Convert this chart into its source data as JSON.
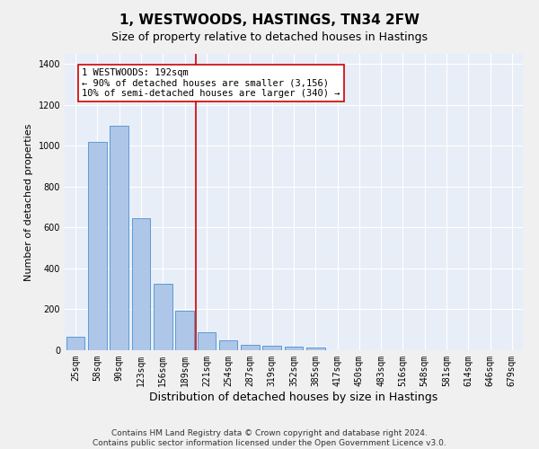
{
  "title": "1, WESTWOODS, HASTINGS, TN34 2FW",
  "subtitle": "Size of property relative to detached houses in Hastings",
  "xlabel": "Distribution of detached houses by size in Hastings",
  "ylabel": "Number of detached properties",
  "categories": [
    "25sqm",
    "58sqm",
    "90sqm",
    "123sqm",
    "156sqm",
    "189sqm",
    "221sqm",
    "254sqm",
    "287sqm",
    "319sqm",
    "352sqm",
    "385sqm",
    "417sqm",
    "450sqm",
    "483sqm",
    "516sqm",
    "548sqm",
    "581sqm",
    "614sqm",
    "646sqm",
    "679sqm"
  ],
  "values": [
    65,
    1020,
    1100,
    648,
    325,
    195,
    90,
    50,
    28,
    20,
    18,
    13,
    0,
    0,
    0,
    0,
    0,
    0,
    0,
    0,
    0
  ],
  "bar_color": "#aec6e8",
  "bar_edge_color": "#5b9bd5",
  "vline_x": 5.5,
  "vline_color": "#cc0000",
  "annotation_line1": "1 WESTWOODS: 192sqm",
  "annotation_line2": "← 90% of detached houses are smaller (3,156)",
  "annotation_line3": "10% of semi-detached houses are larger (340) →",
  "annotation_box_color": "#ffffff",
  "annotation_box_edge": "#cc0000",
  "ylim": [
    0,
    1450
  ],
  "yticks": [
    0,
    200,
    400,
    600,
    800,
    1000,
    1200,
    1400
  ],
  "background_color": "#e8eef7",
  "grid_color": "#ffffff",
  "footer": "Contains HM Land Registry data © Crown copyright and database right 2024.\nContains public sector information licensed under the Open Government Licence v3.0.",
  "title_fontsize": 11,
  "subtitle_fontsize": 9,
  "xlabel_fontsize": 9,
  "ylabel_fontsize": 8,
  "tick_fontsize": 7,
  "annotation_fontsize": 7.5,
  "footer_fontsize": 6.5
}
